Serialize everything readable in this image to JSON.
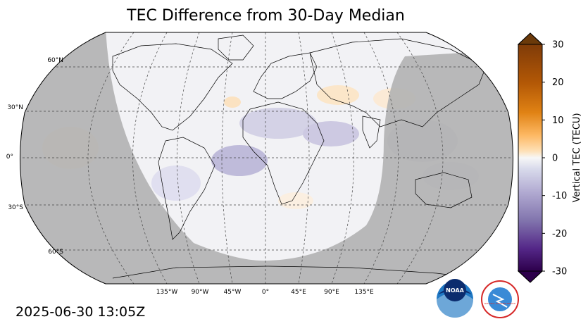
{
  "title": "TEC Difference from 30-Day Median",
  "timestamp": "2025-06-30 13:05Z",
  "map": {
    "projection": "robinson",
    "latitude_labels": [
      "60°N",
      "30°N",
      "0°",
      "30°S",
      "60°S"
    ],
    "longitude_labels": [
      "135°W",
      "90°W",
      "45°W",
      "0°",
      "45°E",
      "90°E",
      "135°E"
    ],
    "night_shading_color": "#b3b3b3",
    "day_background_color": "#f2f2f5"
  },
  "colorbar": {
    "label": "Vertical TEC (TECU)",
    "min": -30,
    "max": 30,
    "ticks": [
      "30",
      "20",
      "10",
      "0",
      "-10",
      "-20",
      "-30"
    ],
    "tick_values": [
      30,
      20,
      10,
      0,
      -10,
      -20,
      -30
    ],
    "colormap": "PuOr_r",
    "extend": "both"
  },
  "logos": {
    "noaa": "NOAA",
    "nws": "NATIONAL WEATHER SERVICE"
  }
}
